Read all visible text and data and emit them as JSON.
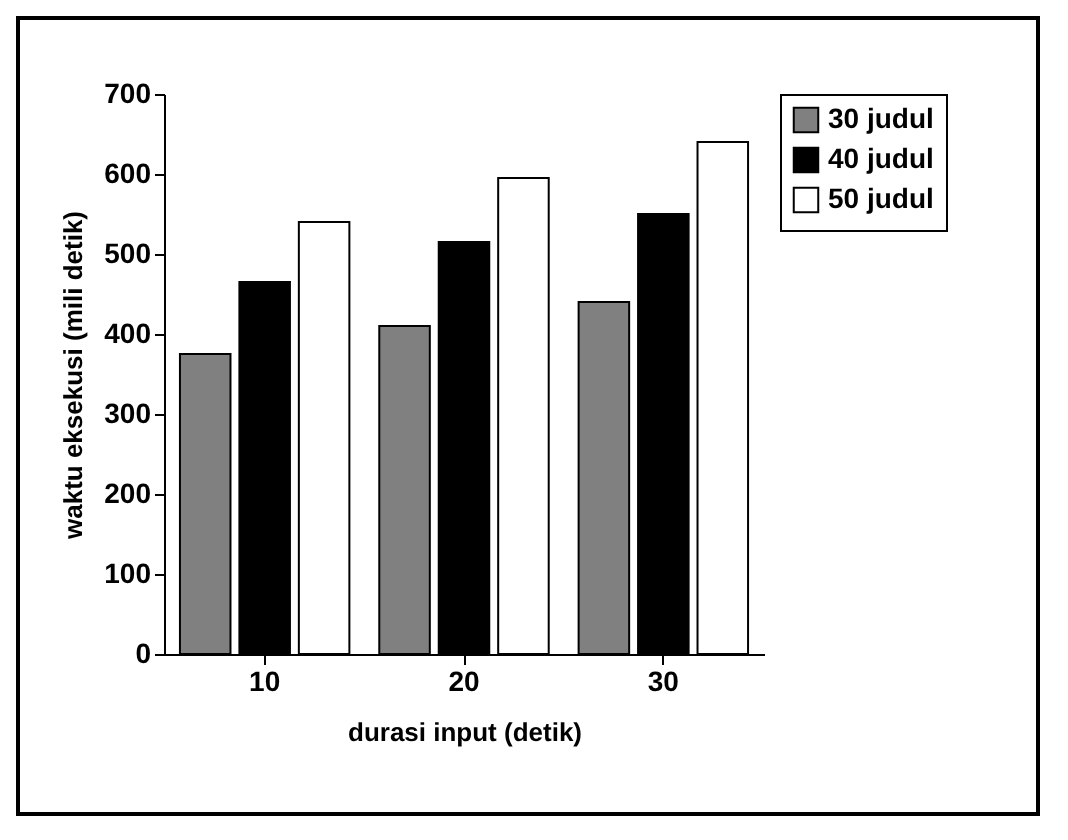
{
  "chart_data": {
    "type": "bar",
    "xlabel": "durasi input (detik)",
    "ylabel": "waktu eksekusi (mili detik)",
    "categories": [
      "10",
      "20",
      "30"
    ],
    "series": [
      {
        "name": "30 judul",
        "color": "#808080",
        "values": [
          375,
          410,
          440
        ]
      },
      {
        "name": "40 judul",
        "color": "#000000",
        "values": [
          465,
          515,
          550
        ]
      },
      {
        "name": "50 judul",
        "color": "#ffffff",
        "values": [
          540,
          595,
          640
        ]
      }
    ],
    "ylim": [
      0,
      700
    ],
    "yticks": [
      0,
      100,
      200,
      300,
      400,
      500,
      600,
      700
    ],
    "grid": false,
    "legend": "right"
  }
}
